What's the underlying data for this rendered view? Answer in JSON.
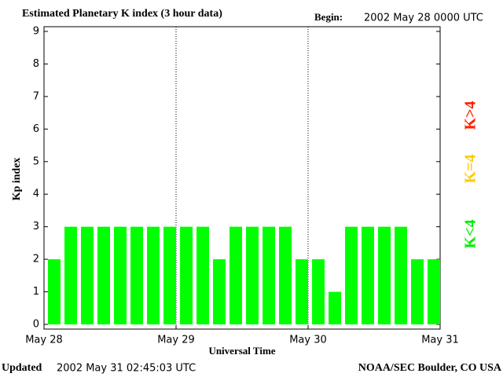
{
  "chart_data": {
    "type": "bar",
    "title": "Estimated Planetary K index (3 hour data)",
    "begin_label": "Begin:",
    "begin": "2002 May 28 0000 UTC",
    "ylabel": "Kp index",
    "xlabel": "Universal Time",
    "updated_label": "Updated",
    "updated": "2002 May 31 02:45:03 UTC",
    "source": "NOAA/SEC Boulder, CO USA",
    "x": [
      0,
      3,
      6,
      9,
      12,
      15,
      18,
      21,
      24,
      27,
      30,
      33,
      36,
      39,
      42,
      45,
      48,
      51,
      54,
      57,
      60,
      63,
      66,
      69
    ],
    "values": [
      2,
      3,
      3,
      3,
      3,
      3,
      3,
      3,
      3,
      3,
      2,
      3,
      3,
      3,
      3,
      2,
      2,
      1,
      3,
      3,
      3,
      3,
      2,
      2
    ],
    "color": "#00ff00",
    "xlim": [
      0,
      72
    ],
    "xticks": [
      {
        "value": 0,
        "label": "May 28"
      },
      {
        "value": 24,
        "label": "May 29"
      },
      {
        "value": 48,
        "label": "May 30"
      },
      {
        "value": 72,
        "label": "May 31"
      }
    ],
    "ylim": [
      0,
      9
    ],
    "yticks": [
      0,
      1,
      2,
      3,
      4,
      5,
      6,
      7,
      8,
      9
    ],
    "grid": true,
    "legend": [
      {
        "name": "K<4",
        "color": "#00ee00"
      },
      {
        "name": "K=4",
        "color": "#ffcc00"
      },
      {
        "name": "K>4",
        "color": "#ff2000"
      }
    ]
  }
}
